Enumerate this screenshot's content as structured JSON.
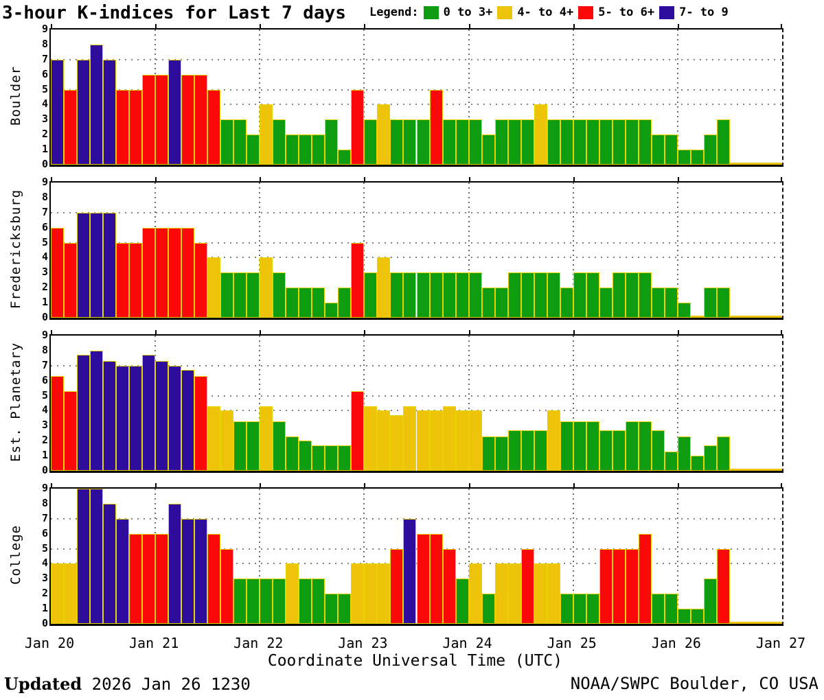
{
  "title": "3-hour K-indices for Last 7 days",
  "legend": {
    "label": "Legend:",
    "items": [
      {
        "label": "0 to 3+",
        "color": "#109c10"
      },
      {
        "label": "4- to 4+",
        "color": "#eec40a"
      },
      {
        "label": "5- to 6+",
        "color": "#fb0808"
      },
      {
        "label": "7- to 9",
        "color": "#2e0d9d"
      }
    ]
  },
  "x_axis": {
    "title": "Coordinate Universal Time (UTC)",
    "tick_labels": [
      "Jan 20",
      "Jan 21",
      "Jan 22",
      "Jan 23",
      "Jan 24",
      "Jan 25",
      "Jan 26",
      "Jan 27"
    ]
  },
  "y_axis": {
    "min": 0,
    "max": 9,
    "tick_labels": [
      "0",
      "1",
      "2",
      "3",
      "4",
      "5",
      "6",
      "7",
      "8",
      "9"
    ]
  },
  "footer": {
    "updated_label": "Updated",
    "updated_value": "2026 Jan 26 1230",
    "credit": "NOAA/SWPC Boulder, CO USA"
  },
  "chart_data": {
    "type": "bar",
    "title": "3-hour K-indices for Last 7 days",
    "x_start": "Jan 20 0000 UTC",
    "bin_hours": 3,
    "bars_per_day": 8,
    "days": 7,
    "ylim": [
      0,
      9
    ],
    "gridlines_y": [
      4,
      5,
      7
    ],
    "grid": true,
    "legend_position": "top",
    "color_rules": [
      {
        "range": "0 to 3+",
        "min": 0,
        "max": 3.33,
        "color": "#109c10"
      },
      {
        "range": "4- to 4+",
        "min": 3.67,
        "max": 4.33,
        "color": "#eec40a"
      },
      {
        "range": "5- to 6+",
        "min": 4.67,
        "max": 6.33,
        "color": "#fb0808"
      },
      {
        "range": "7- to 9",
        "min": 6.67,
        "max": 9,
        "color": "#2e0d9d"
      }
    ],
    "series": [
      {
        "station": "Boulder",
        "values": [
          7,
          5,
          7,
          8,
          7,
          5,
          5,
          6,
          6,
          7,
          6,
          6,
          5,
          3,
          3,
          2,
          4,
          3,
          2,
          2,
          2,
          3,
          1,
          5,
          3,
          4,
          3,
          3,
          3,
          5,
          3,
          3,
          3,
          2,
          3,
          3,
          3,
          4,
          3,
          3,
          3,
          3,
          3,
          3,
          3,
          3,
          2,
          2,
          1,
          1,
          2,
          3,
          0,
          0,
          0,
          0
        ]
      },
      {
        "station": "Fredericksburg",
        "values": [
          6,
          5,
          7,
          7,
          7,
          5,
          5,
          6,
          6,
          6,
          6,
          5,
          4,
          3,
          3,
          3,
          4,
          3,
          2,
          2,
          2,
          1,
          2,
          5,
          3,
          4,
          3,
          3,
          3,
          3,
          3,
          3,
          3,
          2,
          2,
          3,
          3,
          3,
          3,
          2,
          3,
          3,
          2,
          3,
          3,
          3,
          2,
          2,
          1,
          0,
          2,
          2,
          0,
          0,
          0,
          0
        ]
      },
      {
        "station": "Est. Planetary",
        "values": [
          6.3,
          5.3,
          7.7,
          8,
          7.3,
          7,
          7,
          7.7,
          7.3,
          7,
          6.7,
          6.3,
          4.3,
          4,
          3.3,
          3.3,
          4.3,
          3.3,
          2.3,
          2,
          1.7,
          1.7,
          1.7,
          5.3,
          4.3,
          4,
          3.7,
          4.3,
          4,
          4,
          4.3,
          4,
          4,
          2.3,
          2.3,
          2.7,
          2.7,
          2.7,
          4,
          3.3,
          3.3,
          3.3,
          2.7,
          2.7,
          3.3,
          3.3,
          2.7,
          1.3,
          2.3,
          1,
          1.7,
          2.3,
          0,
          0,
          0,
          0
        ]
      },
      {
        "station": "College",
        "values": [
          4,
          4,
          9,
          9,
          8,
          7,
          6,
          6,
          6,
          8,
          7,
          7,
          6,
          5,
          3,
          3,
          3,
          3,
          4,
          3,
          3,
          2,
          2,
          4,
          4,
          4,
          5,
          7,
          6,
          6,
          5,
          3,
          4,
          2,
          4,
          4,
          5,
          4,
          4,
          2,
          2,
          2,
          5,
          5,
          5,
          6,
          2,
          2,
          1,
          1,
          3,
          5,
          0,
          0,
          0,
          0
        ]
      }
    ]
  }
}
